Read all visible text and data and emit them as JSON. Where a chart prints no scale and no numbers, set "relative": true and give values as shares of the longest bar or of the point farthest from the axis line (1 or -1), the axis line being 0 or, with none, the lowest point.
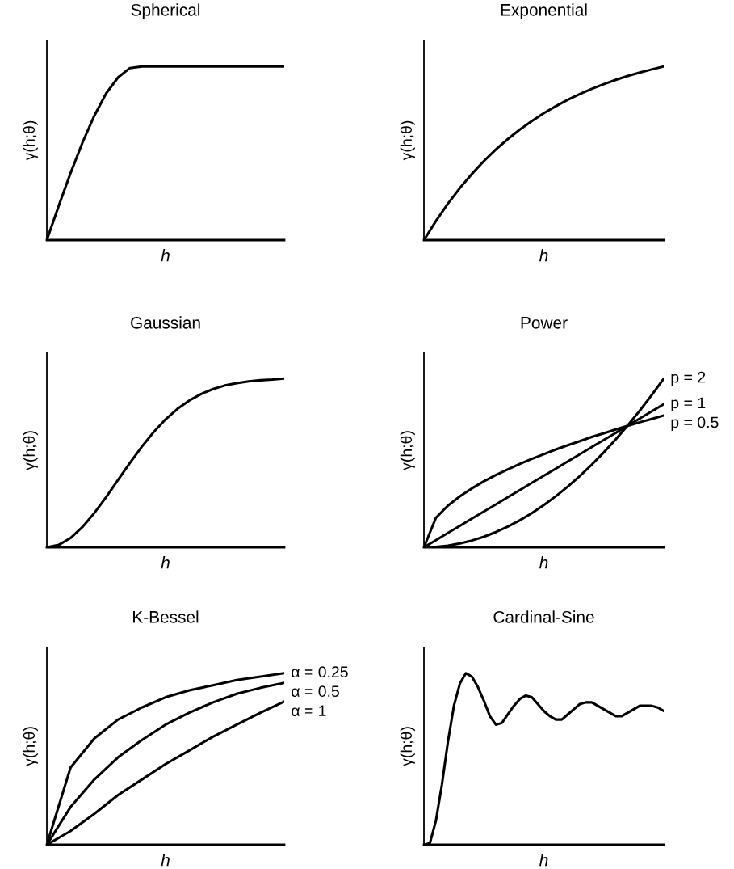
{
  "chart_data": [
    {
      "type": "line",
      "title": "Spherical",
      "xlabel": "h",
      "ylabel": "γ(h;θ)",
      "relative": true,
      "tick_labels": false,
      "categories": [
        null,
        null,
        null,
        null,
        null,
        null,
        null,
        null,
        null,
        null,
        null,
        null,
        null,
        null,
        null,
        null,
        null,
        null,
        null,
        null,
        null
      ],
      "series": [
        {
          "color": "#000000",
          "values": [
            0,
            0.197,
            0.386,
            0.561,
            0.716,
            0.845,
            0.937,
            0.991,
            1,
            1,
            1,
            1,
            1,
            1,
            1,
            1,
            1,
            1,
            1,
            1,
            1
          ]
        }
      ]
    },
    {
      "type": "line",
      "title": "Exponential",
      "xlabel": "h",
      "ylabel": "γ(h;θ)",
      "relative": true,
      "tick_labels": false,
      "categories": [
        null,
        null,
        null,
        null,
        null,
        null,
        null,
        null,
        null,
        null,
        null,
        null,
        null,
        null,
        null,
        null,
        null,
        null,
        null,
        null,
        null
      ],
      "series": [
        {
          "color": "#000000",
          "values": [
            0,
            0.11,
            0.21,
            0.3,
            0.381,
            0.455,
            0.522,
            0.582,
            0.637,
            0.686,
            0.731,
            0.771,
            0.808,
            0.841,
            0.871,
            0.898,
            0.923,
            0.945,
            0.965,
            0.983,
            1
          ]
        }
      ]
    },
    {
      "type": "line",
      "title": "Gaussian",
      "xlabel": "h",
      "ylabel": "γ(h;θ)",
      "relative": true,
      "tick_labels": false,
      "categories": [
        null,
        null,
        null,
        null,
        null,
        null,
        null,
        null,
        null,
        null,
        null,
        null,
        null,
        null,
        null,
        null,
        null,
        null,
        null,
        null,
        null
      ],
      "series": [
        {
          "color": "#000000",
          "values": [
            0,
            0.014,
            0.055,
            0.12,
            0.203,
            0.298,
            0.4,
            0.5,
            0.596,
            0.683,
            0.758,
            0.82,
            0.87,
            0.909,
            0.938,
            0.959,
            0.973,
            0.983,
            0.99,
            0.994,
            1
          ]
        }
      ]
    },
    {
      "type": "line",
      "title": "Power",
      "xlabel": "h",
      "ylabel": "γ(h;θ)",
      "relative": true,
      "tick_labels": false,
      "categories": [
        null,
        null,
        null,
        null,
        null,
        null,
        null,
        null,
        null,
        null,
        null,
        null,
        null,
        null,
        null,
        null,
        null,
        null,
        null,
        null,
        null
      ],
      "series": [
        {
          "name": "p = 2",
          "color": "#000000",
          "values": [
            0,
            0.0025,
            0.01,
            0.0225,
            0.04,
            0.0625,
            0.09,
            0.1225,
            0.16,
            0.2025,
            0.25,
            0.3025,
            0.36,
            0.4225,
            0.49,
            0.5625,
            0.64,
            0.7225,
            0.81,
            0.9025,
            1
          ]
        },
        {
          "name": "p = 1",
          "color": "#000000",
          "values": [
            0,
            0.042,
            0.085,
            0.127,
            0.17,
            0.212,
            0.254,
            0.297,
            0.339,
            0.382,
            0.424,
            0.466,
            0.509,
            0.551,
            0.594,
            0.636,
            0.678,
            0.721,
            0.763,
            0.806,
            0.848
          ]
        },
        {
          "name": "p = 0.5",
          "color": "#000000",
          "values": [
            0,
            0.175,
            0.247,
            0.302,
            0.349,
            0.391,
            0.428,
            0.462,
            0.494,
            0.524,
            0.552,
            0.58,
            0.605,
            0.629,
            0.654,
            0.676,
            0.698,
            0.72,
            0.741,
            0.761,
            0.781
          ]
        }
      ]
    },
    {
      "type": "line",
      "title": "K-Bessel",
      "xlabel": "h",
      "ylabel": "γ(h;θ)",
      "relative": true,
      "tick_labels": false,
      "categories": [
        null,
        null,
        null,
        null,
        null,
        null,
        null,
        null,
        null,
        null,
        null
      ],
      "series": [
        {
          "name": "α = 0.25",
          "color": "#000000",
          "values": [
            0,
            0.45,
            0.62,
            0.73,
            0.8,
            0.86,
            0.9,
            0.93,
            0.96,
            0.98,
            1.0
          ]
        },
        {
          "name": "α = 0.5",
          "color": "#000000",
          "values": [
            0,
            0.22,
            0.38,
            0.51,
            0.61,
            0.7,
            0.77,
            0.83,
            0.88,
            0.915,
            0.944
          ]
        },
        {
          "name": "α = 1",
          "color": "#000000",
          "values": [
            0,
            0.08,
            0.18,
            0.29,
            0.38,
            0.47,
            0.55,
            0.63,
            0.7,
            0.77,
            0.835
          ]
        }
      ]
    },
    {
      "type": "line",
      "title": "Cardinal-Sine",
      "xlabel": "h",
      "ylabel": "γ(h;θ)",
      "relative": true,
      "tick_labels": false,
      "categories": [
        null,
        null,
        null,
        null,
        null,
        null,
        null,
        null,
        null,
        null,
        null,
        null,
        null,
        null,
        null,
        null,
        null,
        null,
        null,
        null,
        null,
        null,
        null,
        null,
        null,
        null,
        null,
        null,
        null,
        null,
        null,
        null,
        null,
        null,
        null,
        null,
        null,
        null,
        null,
        null,
        null
      ],
      "series": [
        {
          "color": "#000000",
          "values": [
            0,
            0.01,
            0.14,
            0.35,
            0.6,
            0.81,
            0.94,
            1.0,
            0.98,
            0.92,
            0.84,
            0.75,
            0.7,
            0.71,
            0.76,
            0.81,
            0.85,
            0.87,
            0.86,
            0.82,
            0.78,
            0.75,
            0.73,
            0.73,
            0.76,
            0.79,
            0.82,
            0.83,
            0.83,
            0.81,
            0.79,
            0.77,
            0.75,
            0.75,
            0.77,
            0.79,
            0.81,
            0.81,
            0.81,
            0.8,
            0.78
          ]
        }
      ]
    }
  ]
}
